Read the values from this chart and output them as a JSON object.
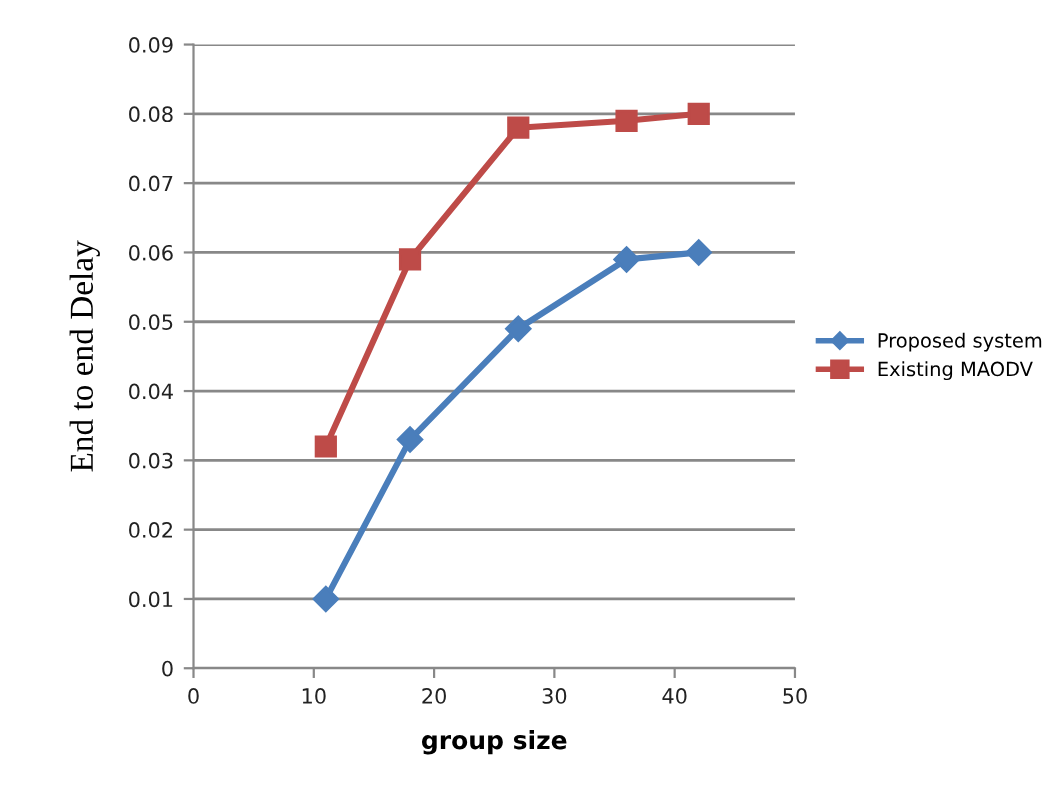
{
  "chart_data": {
    "type": "line",
    "xlabel": "group size",
    "ylabel": "End to end Delay",
    "xlim": [
      0,
      50
    ],
    "xticks": [
      0,
      10,
      20,
      30,
      40,
      50
    ],
    "ylim": [
      0,
      0.09
    ],
    "yticks": [
      0,
      0.01,
      0.02,
      0.03,
      0.04,
      0.05,
      0.06,
      0.07,
      0.08,
      0.09
    ],
    "grid": "y",
    "legend": "right",
    "series": [
      {
        "name": "Proposed system",
        "color": "#4a7ebb",
        "marker": "diamond",
        "x": [
          11,
          18,
          27,
          36,
          42
        ],
        "values": [
          0.01,
          0.033,
          0.049,
          0.059,
          0.06
        ]
      },
      {
        "name": "Existing MAODV",
        "color": "#be4b48",
        "marker": "square",
        "x": [
          11,
          18,
          27,
          36,
          42
        ],
        "values": [
          0.032,
          0.059,
          0.078,
          0.079,
          0.08
        ]
      }
    ]
  }
}
